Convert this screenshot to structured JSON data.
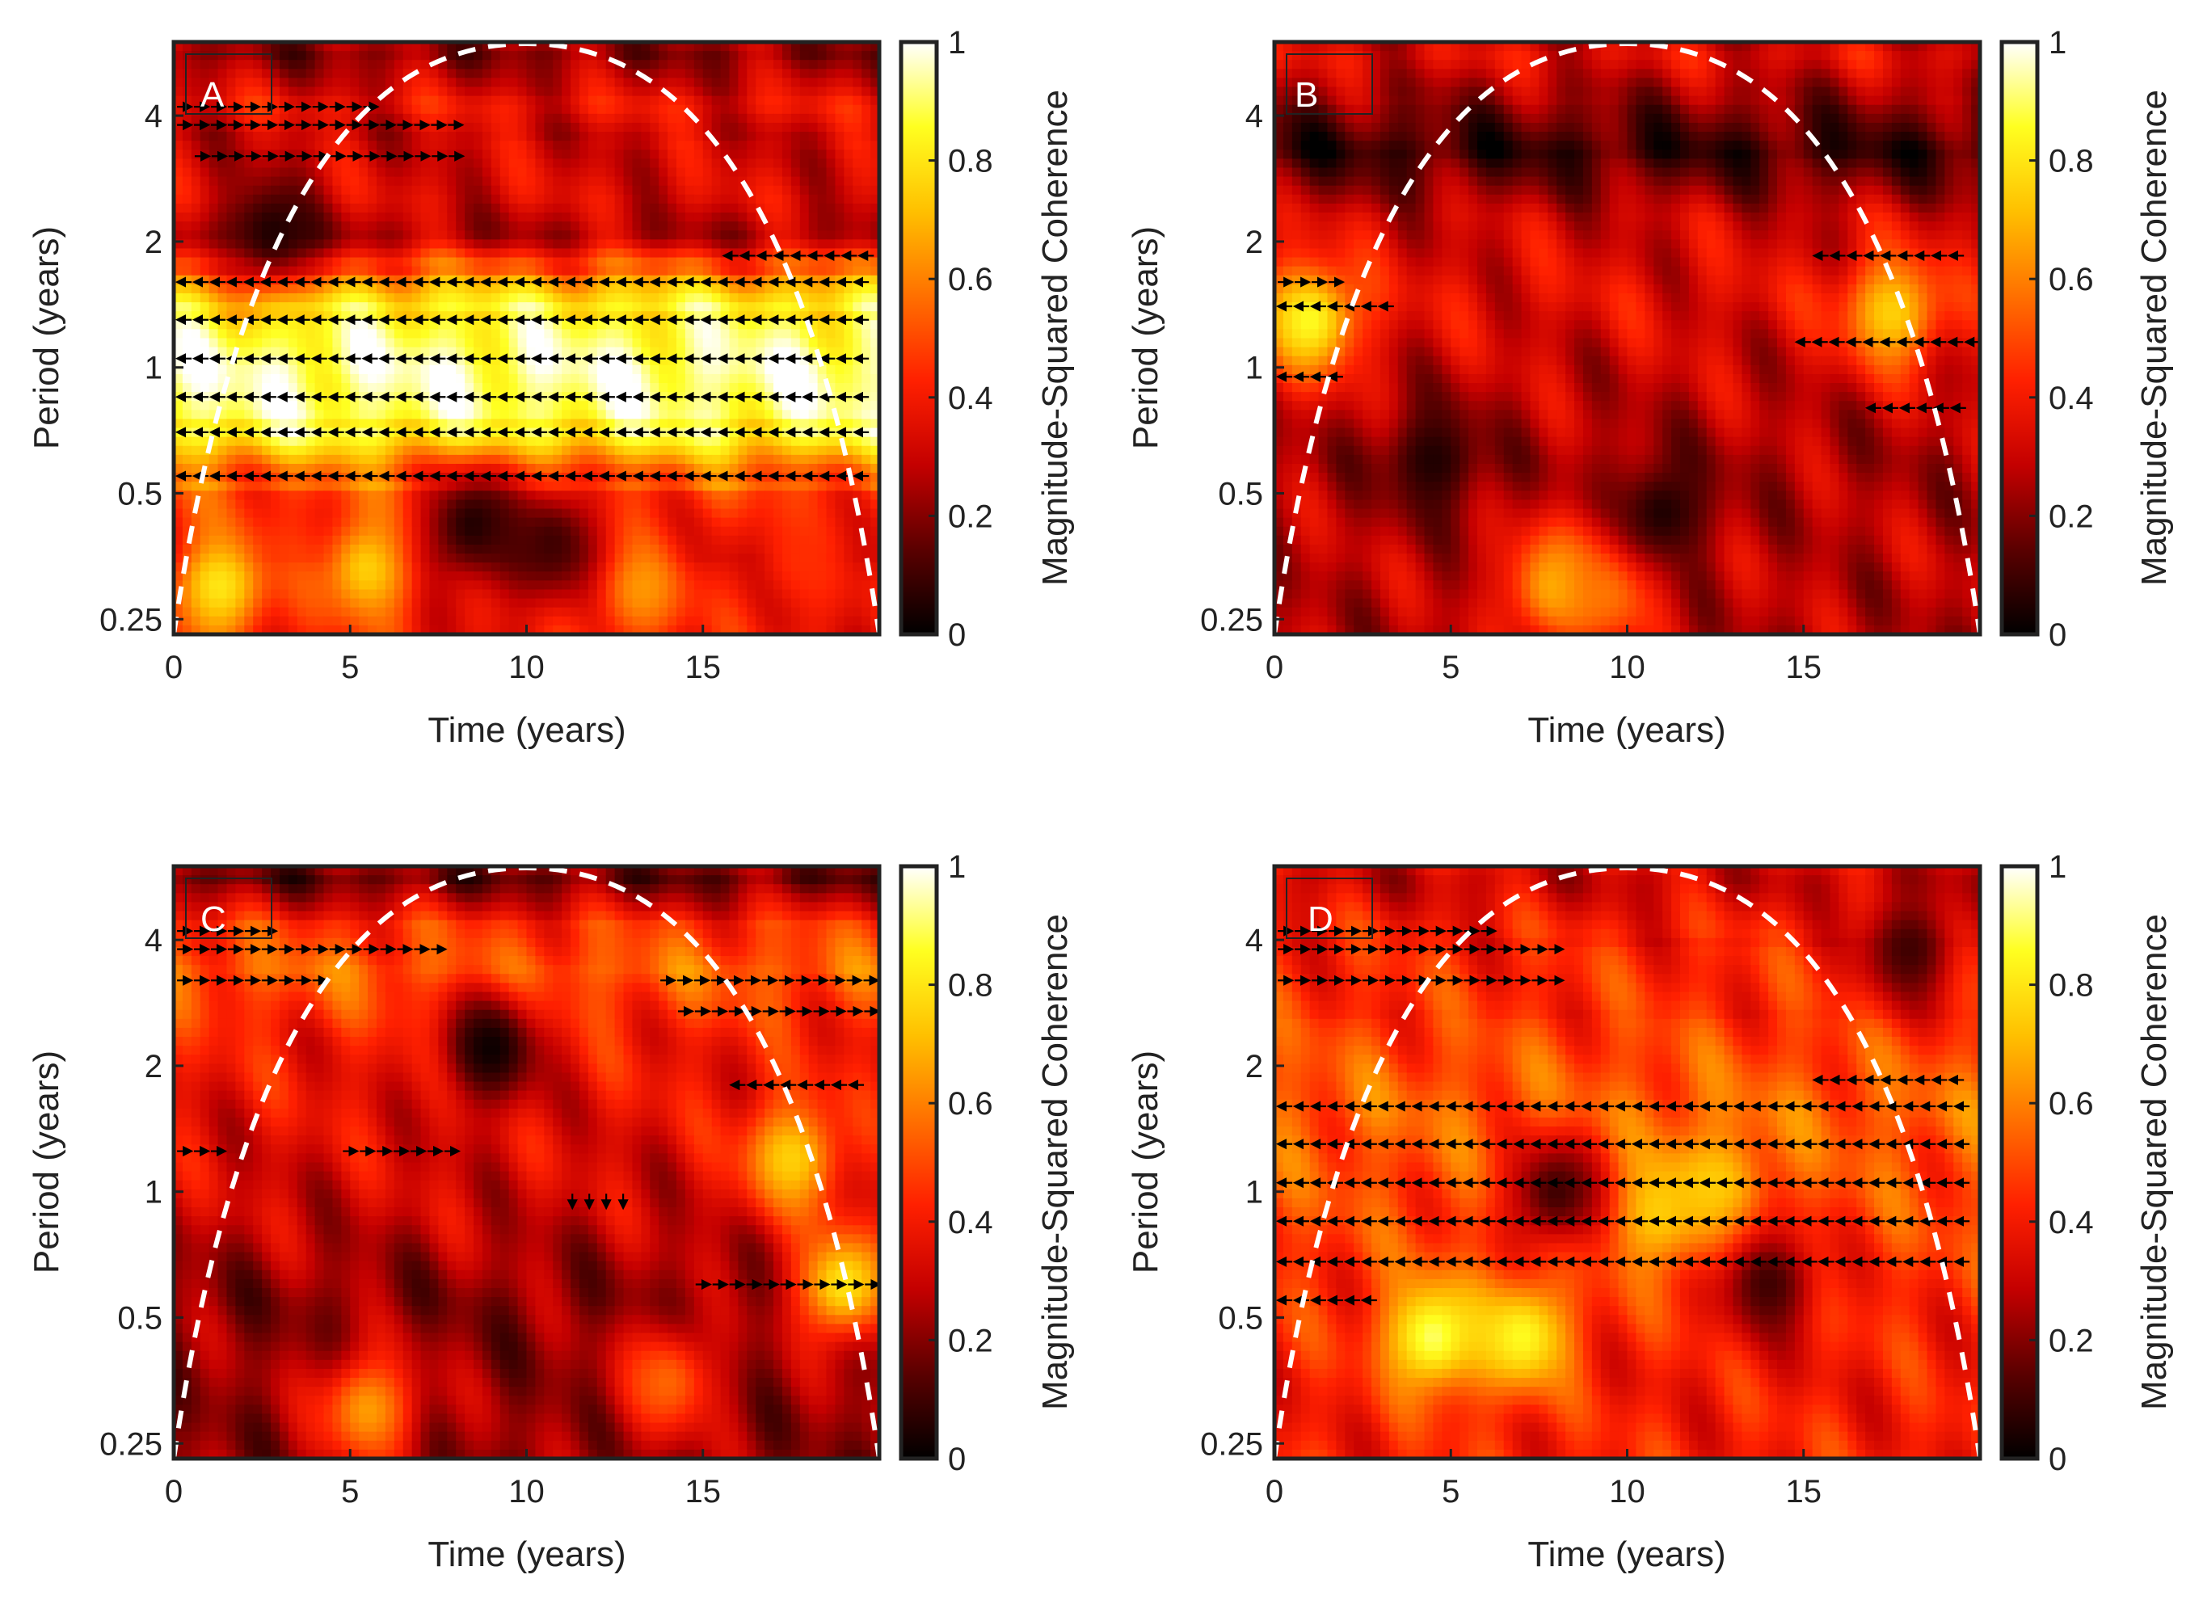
{
  "figure": {
    "background": "#ffffff",
    "frame_color": "#222222"
  },
  "colorbar": {
    "label": "Magnitude-Squared Coherence",
    "ticks": [
      "0",
      "0.2",
      "0.4",
      "0.6",
      "0.8",
      "1"
    ],
    "stops": [
      "#000000",
      "#5a0000",
      "#c40000",
      "#ff2000",
      "#ff7000",
      "#ffc000",
      "#ffff20",
      "#ffffff"
    ]
  },
  "chart_data": [
    {
      "type": "heatmap",
      "panel": "A",
      "xlabel": "Time (years)",
      "ylabel": "Period (years)",
      "xlim": [
        0,
        20
      ],
      "xticks": [
        "0",
        "5",
        "10",
        "15"
      ],
      "ylim": [
        0.23,
        6
      ],
      "yticks": [
        "0.25",
        "0.5",
        "1",
        "2",
        "4"
      ],
      "clim": [
        0,
        1
      ],
      "cone_of_influence": "dashed white arc, peak near t=10",
      "bands": [
        {
          "period": 5.6,
          "t_range": [
            0,
            20
          ],
          "coherence": 0.2
        },
        {
          "period": 4.2,
          "t_range": [
            0,
            20
          ],
          "coherence": 0.38
        },
        {
          "period": 3.6,
          "t_range": [
            0,
            20
          ],
          "coherence": 0.3
        },
        {
          "period": 2.6,
          "t_range": [
            0,
            20
          ],
          "coherence": 0.34
        },
        {
          "period": 2.05,
          "t_range": [
            0,
            20
          ],
          "coherence": 0.24
        },
        {
          "period": 1.75,
          "t_range": [
            0,
            20
          ],
          "coherence": 0.55
        },
        {
          "period": 1.4,
          "t_range": [
            0,
            20
          ],
          "coherence": 0.85
        },
        {
          "period": 1.0,
          "t_range": [
            0,
            20
          ],
          "coherence": 0.95
        },
        {
          "period": 0.7,
          "t_range": [
            0,
            20
          ],
          "coherence": 0.9
        },
        {
          "period": 0.55,
          "t_range": [
            0,
            20
          ],
          "coherence": 0.5
        },
        {
          "period": 0.35,
          "t_range": [
            0,
            20
          ],
          "coherence": 0.32
        }
      ],
      "hotspots": [
        {
          "t": 1.3,
          "period": 0.3,
          "coherence": 0.8
        },
        {
          "t": 5.5,
          "period": 0.33,
          "coherence": 0.75
        },
        {
          "t": 13.2,
          "period": 0.3,
          "coherence": 0.65
        },
        {
          "t": 17.8,
          "period": 0.35,
          "coherence": 0.45
        },
        {
          "t": 2.8,
          "period": 2.1,
          "coherence": 0.05
        },
        {
          "t": 8.5,
          "period": 0.42,
          "coherence": 0.05
        },
        {
          "t": 10.7,
          "period": 0.38,
          "coherence": 0.1
        }
      ],
      "phase_arrows": [
        {
          "period": 4.2,
          "t_range": [
            0.3,
            6
          ],
          "direction": "right"
        },
        {
          "period": 3.8,
          "t_range": [
            0.3,
            8.2
          ],
          "direction": "right"
        },
        {
          "period": 3.2,
          "t_range": [
            0.8,
            8.2
          ],
          "direction": "right"
        },
        {
          "period": 1.85,
          "t_range": [
            15.8,
            19.8
          ],
          "direction": "left"
        },
        {
          "period": 1.6,
          "t_range": [
            0.3,
            19.8
          ],
          "direction": "left"
        },
        {
          "period": 1.3,
          "t_range": [
            0.3,
            19.8
          ],
          "direction": "left"
        },
        {
          "period": 1.05,
          "t_range": [
            0.3,
            19.8
          ],
          "direction": "left"
        },
        {
          "period": 0.85,
          "t_range": [
            0.3,
            19.8
          ],
          "direction": "left"
        },
        {
          "period": 0.7,
          "t_range": [
            0.3,
            19.8
          ],
          "direction": "left"
        },
        {
          "period": 0.55,
          "t_range": [
            0.3,
            19.8
          ],
          "direction": "left"
        }
      ]
    },
    {
      "type": "heatmap",
      "panel": "B",
      "xlabel": "Time (years)",
      "ylabel": "Period (years)",
      "xlim": [
        0,
        20
      ],
      "xticks": [
        "0",
        "5",
        "10",
        "15"
      ],
      "ylim": [
        0.23,
        6
      ],
      "yticks": [
        "0.25",
        "0.5",
        "1",
        "2",
        "4"
      ],
      "clim": [
        0,
        1
      ],
      "cone_of_influence": "dashed white arc, peak near t=10",
      "bands": [
        {
          "period": 5.5,
          "t_range": [
            0,
            20
          ],
          "coherence": 0.35
        },
        {
          "period": 4.4,
          "t_range": [
            0,
            20
          ],
          "coherence": 0.22
        },
        {
          "period": 3.3,
          "t_range": [
            0,
            20
          ],
          "coherence": 0.08
        },
        {
          "period": 2.3,
          "t_range": [
            0,
            20
          ],
          "coherence": 0.3
        },
        {
          "period": 1.5,
          "t_range": [
            0,
            20
          ],
          "coherence": 0.35
        },
        {
          "period": 1.0,
          "t_range": [
            0,
            20
          ],
          "coherence": 0.3
        },
        {
          "period": 0.6,
          "t_range": [
            0,
            20
          ],
          "coherence": 0.25
        },
        {
          "period": 0.35,
          "t_range": [
            0,
            20
          ],
          "coherence": 0.28
        }
      ],
      "hotspots": [
        {
          "t": 1.0,
          "period": 1.3,
          "coherence": 0.85
        },
        {
          "t": 17.5,
          "period": 1.35,
          "coherence": 0.75
        },
        {
          "t": 8.0,
          "period": 0.3,
          "coherence": 0.7
        },
        {
          "t": 9.5,
          "period": 0.3,
          "coherence": 0.6
        },
        {
          "t": 4.5,
          "period": 0.6,
          "coherence": 0.05
        },
        {
          "t": 11.0,
          "period": 0.45,
          "coherence": 0.05
        }
      ],
      "phase_arrows": [
        {
          "period": 1.85,
          "t_range": [
            15.5,
            19.8
          ],
          "direction": "left"
        },
        {
          "period": 1.6,
          "t_range": [
            0.3,
            2.0
          ],
          "direction": "right"
        },
        {
          "period": 1.4,
          "t_range": [
            0.3,
            3.5
          ],
          "direction": "left"
        },
        {
          "period": 1.15,
          "t_range": [
            15.0,
            19.8
          ],
          "direction": "left"
        },
        {
          "period": 0.95,
          "t_range": [
            0.3,
            2.0
          ],
          "direction": "left"
        },
        {
          "period": 0.8,
          "t_range": [
            17.0,
            19.8
          ],
          "direction": "left"
        }
      ]
    },
    {
      "type": "heatmap",
      "panel": "C",
      "xlabel": "Time (years)",
      "ylabel": "Period (years)",
      "xlim": [
        0,
        20
      ],
      "xticks": [
        "0",
        "5",
        "10",
        "15"
      ],
      "ylim": [
        0.23,
        6
      ],
      "yticks": [
        "0.25",
        "0.5",
        "1",
        "2",
        "4"
      ],
      "clim": [
        0,
        1
      ],
      "cone_of_influence": "dashed white arc, peak near t=10",
      "bands": [
        {
          "period": 5.6,
          "t_range": [
            0,
            20
          ],
          "coherence": 0.15
        },
        {
          "period": 4.3,
          "t_range": [
            0,
            20
          ],
          "coherence": 0.45
        },
        {
          "period": 3.4,
          "t_range": [
            0,
            20
          ],
          "coherence": 0.55
        },
        {
          "period": 2.3,
          "t_range": [
            0,
            20
          ],
          "coherence": 0.4
        },
        {
          "period": 1.4,
          "t_range": [
            0,
            20
          ],
          "coherence": 0.35
        },
        {
          "period": 0.9,
          "t_range": [
            0,
            20
          ],
          "coherence": 0.3
        },
        {
          "period": 0.55,
          "t_range": [
            0,
            20
          ],
          "coherence": 0.2
        },
        {
          "period": 0.33,
          "t_range": [
            0,
            20
          ],
          "coherence": 0.22
        }
      ],
      "hotspots": [
        {
          "t": 9.0,
          "period": 2.2,
          "coherence": 0.02
        },
        {
          "t": 17.5,
          "period": 1.2,
          "coherence": 0.75
        },
        {
          "t": 19.0,
          "period": 0.6,
          "coherence": 0.8
        },
        {
          "t": 5.5,
          "period": 0.3,
          "coherence": 0.65
        },
        {
          "t": 14.0,
          "period": 0.35,
          "coherence": 0.55
        }
      ],
      "phase_arrows": [
        {
          "period": 4.2,
          "t_range": [
            0.3,
            3.0
          ],
          "direction": "right"
        },
        {
          "period": 3.8,
          "t_range": [
            0.3,
            7.5
          ],
          "direction": "right"
        },
        {
          "period": 3.2,
          "t_range": [
            0.3,
            4.2
          ],
          "direction": "right"
        },
        {
          "period": 3.2,
          "t_range": [
            14.0,
            19.8
          ],
          "direction": "right"
        },
        {
          "period": 2.7,
          "t_range": [
            14.5,
            19.8
          ],
          "direction": "right"
        },
        {
          "period": 1.8,
          "t_range": [
            16.0,
            19.8
          ],
          "direction": "left"
        },
        {
          "period": 1.25,
          "t_range": [
            0.3,
            1.5
          ],
          "direction": "right"
        },
        {
          "period": 1.25,
          "t_range": [
            5.0,
            8.2
          ],
          "direction": "right"
        },
        {
          "period": 0.95,
          "t_range": [
            11.3,
            13.0
          ],
          "direction": "down"
        },
        {
          "period": 0.6,
          "t_range": [
            15.0,
            19.8
          ],
          "direction": "right"
        }
      ]
    },
    {
      "type": "heatmap",
      "panel": "D",
      "xlabel": "Time (years)",
      "ylabel": "Period (years)",
      "xlim": [
        0,
        20
      ],
      "xticks": [
        "0",
        "5",
        "10",
        "15"
      ],
      "ylim": [
        0.23,
        6
      ],
      "yticks": [
        "0.25",
        "0.5",
        "1",
        "2",
        "4"
      ],
      "clim": [
        0,
        1
      ],
      "cone_of_influence": "dashed white arc, peak near t=10",
      "bands": [
        {
          "period": 5.5,
          "t_range": [
            0,
            20
          ],
          "coherence": 0.3
        },
        {
          "period": 4.2,
          "t_range": [
            0,
            20
          ],
          "coherence": 0.42
        },
        {
          "period": 2.8,
          "t_range": [
            0,
            20
          ],
          "coherence": 0.45
        },
        {
          "period": 1.6,
          "t_range": [
            0,
            20
          ],
          "coherence": 0.55
        },
        {
          "period": 1.0,
          "t_range": [
            0,
            20
          ],
          "coherence": 0.5
        },
        {
          "period": 0.6,
          "t_range": [
            0,
            20
          ],
          "coherence": 0.45
        },
        {
          "period": 0.35,
          "t_range": [
            0,
            20
          ],
          "coherence": 0.4
        }
      ],
      "hotspots": [
        {
          "t": 4.5,
          "period": 0.45,
          "coherence": 0.9
        },
        {
          "t": 7.0,
          "period": 0.45,
          "coherence": 0.85
        },
        {
          "t": 10.8,
          "period": 0.9,
          "coherence": 0.75
        },
        {
          "t": 12.5,
          "period": 1.0,
          "coherence": 0.75
        },
        {
          "t": 8.0,
          "period": 1.0,
          "coherence": 0.1
        },
        {
          "t": 14.0,
          "period": 0.6,
          "coherence": 0.1
        },
        {
          "t": 18.0,
          "period": 3.8,
          "coherence": 0.1
        }
      ],
      "phase_arrows": [
        {
          "period": 4.2,
          "t_range": [
            0.3,
            6.5
          ],
          "direction": "right"
        },
        {
          "period": 3.8,
          "t_range": [
            0.3,
            8.0
          ],
          "direction": "right"
        },
        {
          "period": 3.2,
          "t_range": [
            0.3,
            8.0
          ],
          "direction": "right"
        },
        {
          "period": 1.85,
          "t_range": [
            15.5,
            19.8
          ],
          "direction": "left"
        },
        {
          "period": 1.6,
          "t_range": [
            0.3,
            19.8
          ],
          "direction": "left"
        },
        {
          "period": 1.3,
          "t_range": [
            0.3,
            19.8
          ],
          "direction": "left"
        },
        {
          "period": 1.05,
          "t_range": [
            0.3,
            19.8
          ],
          "direction": "left"
        },
        {
          "period": 0.85,
          "t_range": [
            0.3,
            19.8
          ],
          "direction": "left"
        },
        {
          "period": 0.68,
          "t_range": [
            0.3,
            19.8
          ],
          "direction": "left"
        },
        {
          "period": 0.55,
          "t_range": [
            0.3,
            3.0
          ],
          "direction": "left"
        }
      ]
    }
  ]
}
